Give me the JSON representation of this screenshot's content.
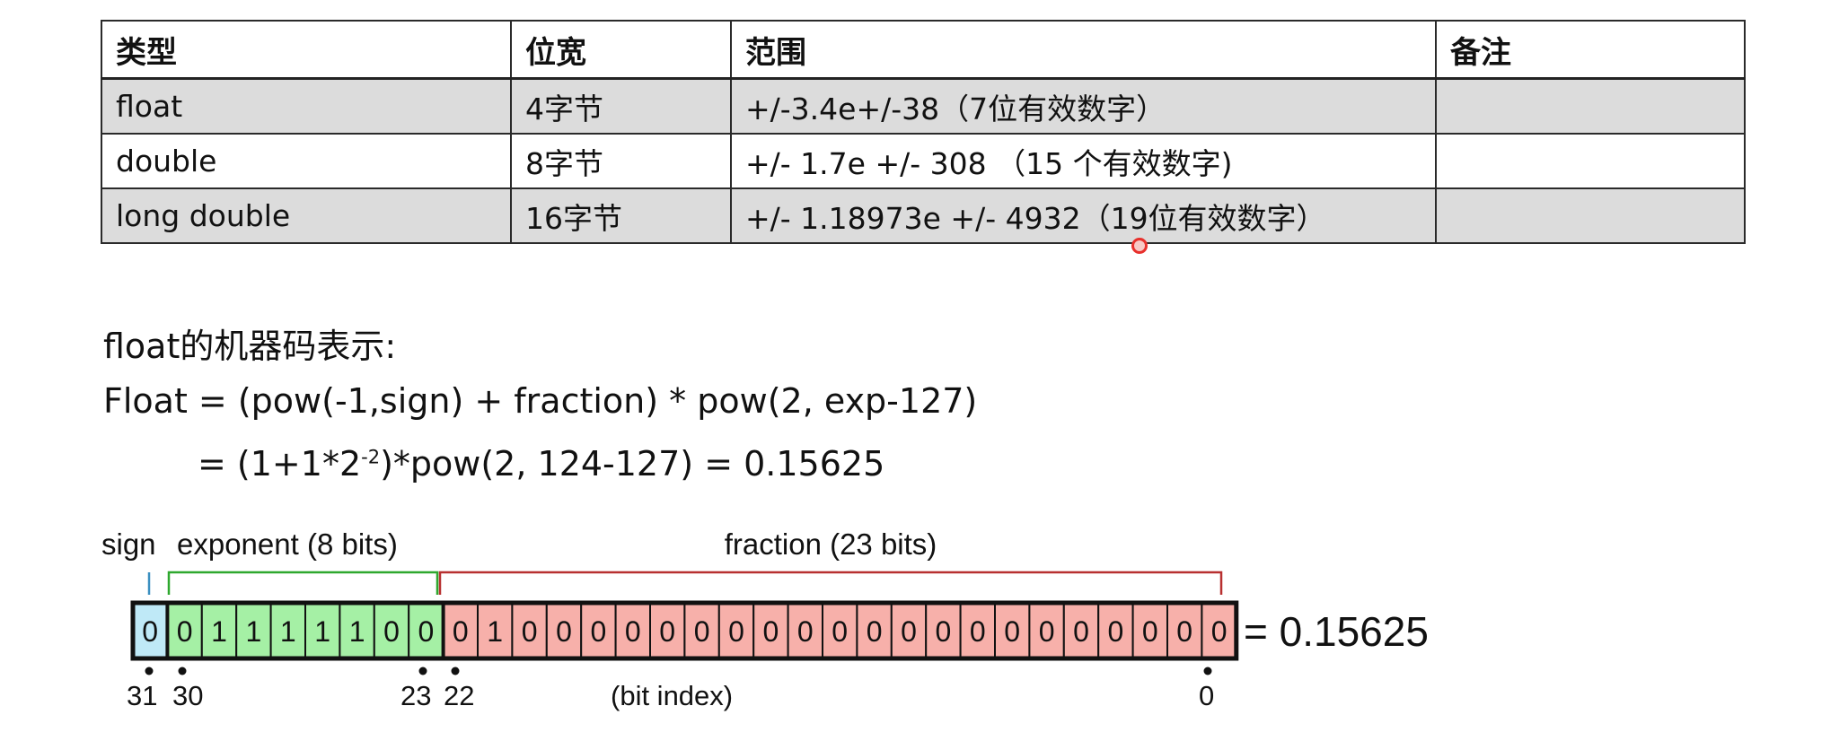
{
  "table": {
    "headers": [
      "类型",
      "位宽",
      "范围",
      "备注"
    ],
    "rows": [
      {
        "type": "float",
        "width": "4字节",
        "range": "+/-3.4e+/-38（7位有效数字）",
        "note": ""
      },
      {
        "type": "double",
        "width": "8字节",
        "range": "+/- 1.7e +/- 308 （15 个有效数字)",
        "note": ""
      },
      {
        "type": "long double",
        "width": "16字节",
        "range": "+/- 1.18973e +/- 4932（19位有效数字）",
        "note": ""
      }
    ]
  },
  "heading": "float的机器码表示:",
  "formula": {
    "line1": "Float = (pow(-1,sign) + fraction) * pow(2, exp-127)",
    "line2_before": "= (1+1*2",
    "line2_sup": "-2",
    "line2_after": ")*pow(2, 124-127) = 0.15625"
  },
  "diagram": {
    "sign_label": "sign",
    "exponent_label": "exponent (8 bits)",
    "fraction_label": "fraction (23 bits)",
    "bits": "00111110001000000000000000000000",
    "result": "= 0.15625",
    "index_labels": [
      "31",
      "30",
      "23",
      "22",
      "0"
    ],
    "index_caption": "(bit index)",
    "colors": {
      "sign_fill": "#bfe9f7",
      "exponent_fill": "#a5f0a5",
      "fraction_fill": "#f7b0aa",
      "sign_bracket": "#3a8fc0",
      "exponent_bracket": "#2ea82e",
      "fraction_bracket": "#b83030"
    }
  }
}
